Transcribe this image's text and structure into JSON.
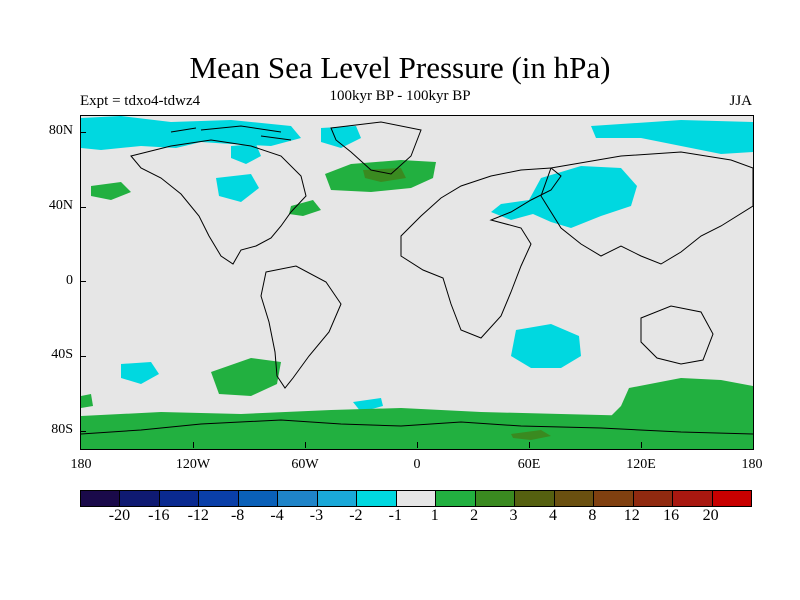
{
  "title": "Mean Sea Level Pressure (in hPa)",
  "subtitle": "100kyr BP - 100kyr BP",
  "left_label": "Expt = tdxo4-tdwz4",
  "right_label": "JJA",
  "y_axis": [
    "80N",
    "40N",
    "0",
    "40S",
    "80S"
  ],
  "x_axis": [
    "180",
    "120W",
    "60W",
    "0",
    "60E",
    "120E",
    "180"
  ],
  "colorbar": {
    "colors": [
      "#1a0a4a",
      "#0f1a72",
      "#0a2a90",
      "#0a3fa8",
      "#0a60b8",
      "#1f84c8",
      "#1aa8d8",
      "#00d8e0",
      "#e6e6e6",
      "#22b040",
      "#3a8a20",
      "#556010",
      "#6a5010",
      "#804010",
      "#902a10",
      "#a81810",
      "#c80000"
    ],
    "labels": [
      "-20",
      "-16",
      "-12",
      "-8",
      "-4",
      "-3",
      "-2",
      "-1",
      "1",
      "2",
      "3",
      "4",
      "8",
      "12",
      "16",
      "20"
    ]
  }
}
